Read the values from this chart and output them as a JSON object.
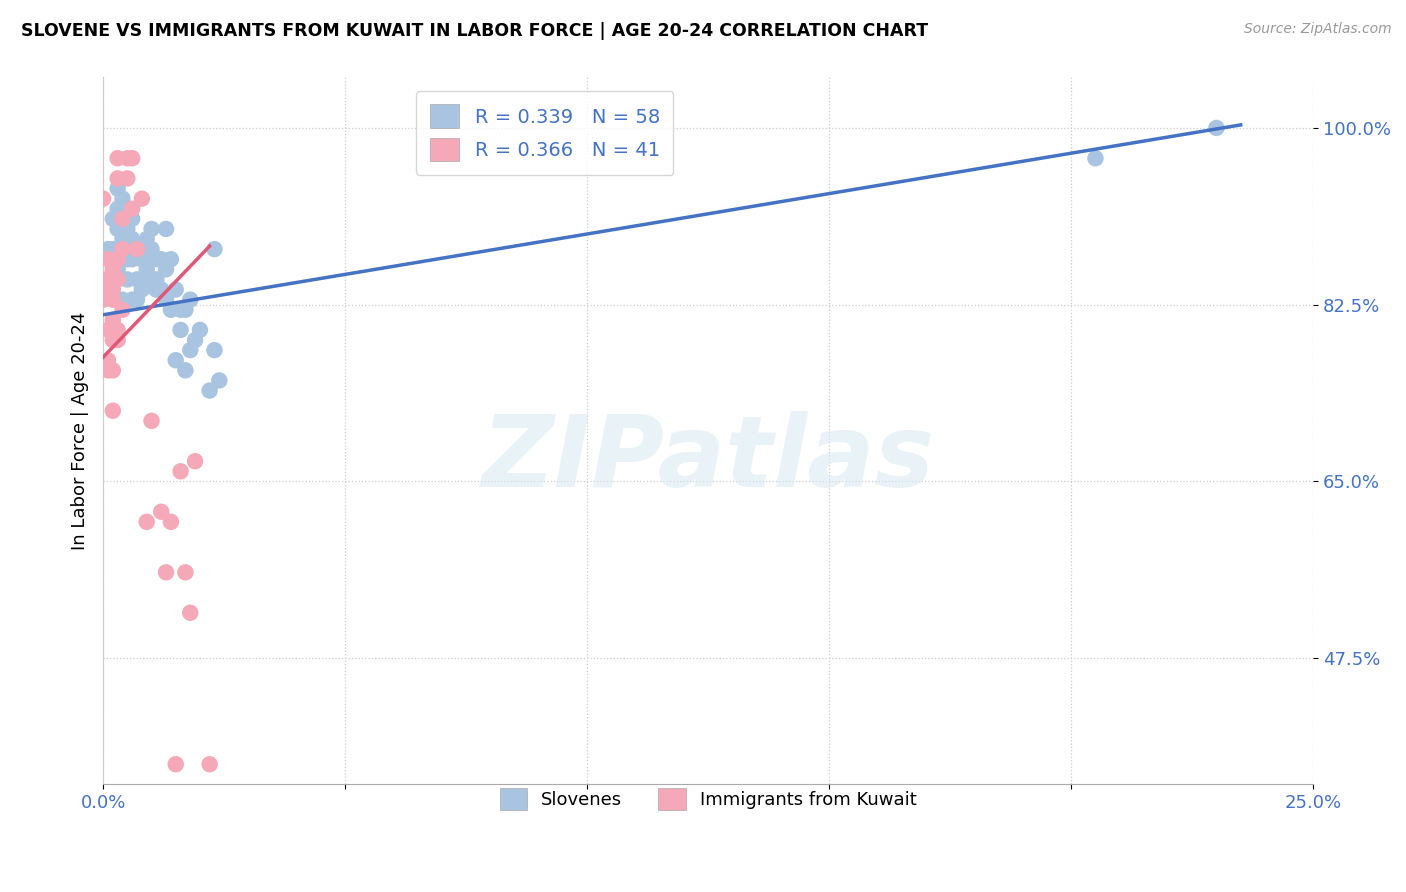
{
  "title": "SLOVENE VS IMMIGRANTS FROM KUWAIT IN LABOR FORCE | AGE 20-24 CORRELATION CHART",
  "source": "Source: ZipAtlas.com",
  "ylabel": "In Labor Force | Age 20-24",
  "xlim": [
    0.0,
    0.25
  ],
  "ylim": [
    0.35,
    1.05
  ],
  "x_ticks": [
    0.0,
    0.05,
    0.1,
    0.15,
    0.2,
    0.25
  ],
  "x_tick_labels": [
    "0.0%",
    "",
    "",
    "",
    "",
    "25.0%"
  ],
  "y_ticks": [
    0.475,
    0.65,
    0.825,
    1.0
  ],
  "y_tick_labels": [
    "47.5%",
    "65.0%",
    "82.5%",
    "100.0%"
  ],
  "R_blue": 0.339,
  "N_blue": 58,
  "R_pink": 0.366,
  "N_pink": 41,
  "blue_scatter_color": "#a8c4e0",
  "pink_scatter_color": "#f4a8b8",
  "line_blue_color": "#4472c4",
  "line_pink_color": "#e05878",
  "text_blue_color": "#4472c4",
  "watermark": "ZIPatlas",
  "blue_line_x0": 0.0,
  "blue_line_y0": 0.815,
  "blue_line_x1": 0.235,
  "blue_line_y1": 1.003,
  "pink_line_x0": 0.0,
  "pink_line_y0": 0.773,
  "pink_line_x1": 0.022,
  "pink_line_y1": 0.883,
  "slovene_x": [
    0.001,
    0.001,
    0.002,
    0.002,
    0.003,
    0.003,
    0.003,
    0.003,
    0.003,
    0.004,
    0.004,
    0.004,
    0.004,
    0.005,
    0.005,
    0.005,
    0.005,
    0.006,
    0.006,
    0.006,
    0.006,
    0.007,
    0.007,
    0.007,
    0.008,
    0.008,
    0.009,
    0.009,
    0.009,
    0.01,
    0.01,
    0.01,
    0.011,
    0.011,
    0.011,
    0.012,
    0.012,
    0.013,
    0.013,
    0.013,
    0.014,
    0.014,
    0.015,
    0.015,
    0.016,
    0.016,
    0.017,
    0.017,
    0.018,
    0.018,
    0.019,
    0.02,
    0.022,
    0.023,
    0.023,
    0.024,
    0.205,
    0.23
  ],
  "slovene_y": [
    0.88,
    0.85,
    0.88,
    0.91,
    0.88,
    0.92,
    0.86,
    0.9,
    0.94,
    0.87,
    0.93,
    0.89,
    0.83,
    0.89,
    0.87,
    0.85,
    0.9,
    0.89,
    0.91,
    0.87,
    0.83,
    0.85,
    0.83,
    0.88,
    0.87,
    0.84,
    0.87,
    0.86,
    0.89,
    0.88,
    0.9,
    0.85,
    0.87,
    0.84,
    0.85,
    0.84,
    0.87,
    0.86,
    0.9,
    0.83,
    0.87,
    0.82,
    0.84,
    0.77,
    0.82,
    0.8,
    0.76,
    0.82,
    0.78,
    0.83,
    0.79,
    0.8,
    0.74,
    0.88,
    0.78,
    0.75,
    0.97,
    1.0
  ],
  "kuwait_x": [
    0.0,
    0.0,
    0.0,
    0.001,
    0.001,
    0.001,
    0.001,
    0.001,
    0.002,
    0.002,
    0.002,
    0.002,
    0.002,
    0.002,
    0.002,
    0.003,
    0.003,
    0.003,
    0.003,
    0.003,
    0.004,
    0.004,
    0.004,
    0.005,
    0.005,
    0.006,
    0.006,
    0.007,
    0.008,
    0.009,
    0.01,
    0.012,
    0.013,
    0.014,
    0.015,
    0.016,
    0.017,
    0.018,
    0.019,
    0.022,
    0.003
  ],
  "kuwait_y": [
    0.83,
    0.93,
    0.85,
    0.77,
    0.8,
    0.84,
    0.87,
    0.76,
    0.86,
    0.83,
    0.81,
    0.84,
    0.79,
    0.76,
    0.72,
    0.87,
    0.85,
    0.8,
    0.79,
    0.95,
    0.82,
    0.88,
    0.91,
    0.97,
    0.95,
    0.92,
    0.97,
    0.88,
    0.93,
    0.61,
    0.71,
    0.62,
    0.56,
    0.61,
    0.37,
    0.66,
    0.56,
    0.52,
    0.67,
    0.37,
    0.97
  ]
}
